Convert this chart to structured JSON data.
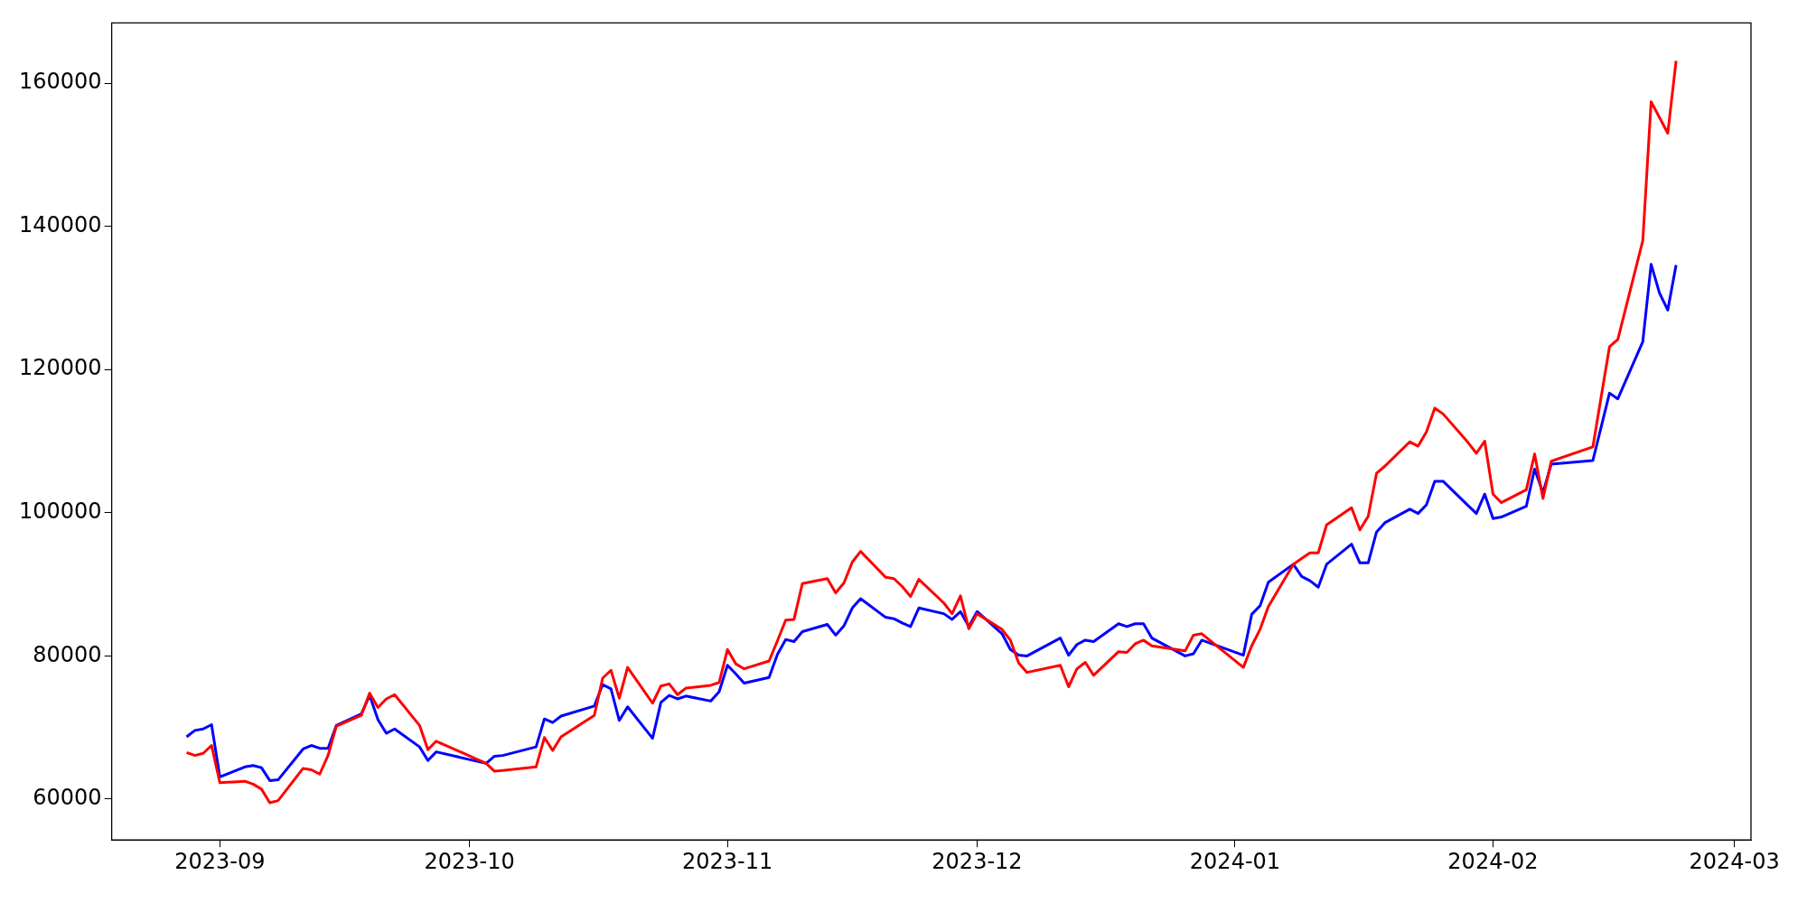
{
  "chart_data": {
    "type": "line",
    "x": [
      "2023-08-28",
      "2023-08-29",
      "2023-08-30",
      "2023-08-31",
      "2023-09-01",
      "2023-09-04",
      "2023-09-05",
      "2023-09-06",
      "2023-09-07",
      "2023-09-08",
      "2023-09-11",
      "2023-09-12",
      "2023-09-13",
      "2023-09-14",
      "2023-09-15",
      "2023-09-18",
      "2023-09-19",
      "2023-09-20",
      "2023-09-21",
      "2023-09-22",
      "2023-09-25",
      "2023-09-26",
      "2023-09-27",
      "2023-10-03",
      "2023-10-04",
      "2023-10-05",
      "2023-10-09",
      "2023-10-10",
      "2023-10-11",
      "2023-10-12",
      "2023-10-16",
      "2023-10-17",
      "2023-10-18",
      "2023-10-19",
      "2023-10-20",
      "2023-10-23",
      "2023-10-24",
      "2023-10-25",
      "2023-10-26",
      "2023-10-27",
      "2023-10-30",
      "2023-10-31",
      "2023-11-01",
      "2023-11-02",
      "2023-11-03",
      "2023-11-06",
      "2023-11-07",
      "2023-11-08",
      "2023-11-09",
      "2023-11-10",
      "2023-11-13",
      "2023-11-14",
      "2023-11-15",
      "2023-11-16",
      "2023-11-17",
      "2023-11-20",
      "2023-11-21",
      "2023-11-22",
      "2023-11-23",
      "2023-11-24",
      "2023-11-27",
      "2023-11-28",
      "2023-11-29",
      "2023-11-30",
      "2023-12-01",
      "2023-12-04",
      "2023-12-05",
      "2023-12-06",
      "2023-12-07",
      "2023-12-11",
      "2023-12-12",
      "2023-12-13",
      "2023-12-14",
      "2023-12-15",
      "2023-12-18",
      "2023-12-19",
      "2023-12-20",
      "2023-12-21",
      "2023-12-22",
      "2023-12-26",
      "2023-12-27",
      "2023-12-28",
      "2024-01-02",
      "2024-01-03",
      "2024-01-04",
      "2024-01-05",
      "2024-01-08",
      "2024-01-09",
      "2024-01-10",
      "2024-01-11",
      "2024-01-12",
      "2024-01-15",
      "2024-01-16",
      "2024-01-17",
      "2024-01-18",
      "2024-01-19",
      "2024-01-22",
      "2024-01-23",
      "2024-01-24",
      "2024-01-25",
      "2024-01-26",
      "2024-01-29",
      "2024-01-30",
      "2024-01-31",
      "2024-02-01",
      "2024-02-02",
      "2024-02-05",
      "2024-02-06",
      "2024-02-07",
      "2024-02-08",
      "2024-02-13",
      "2024-02-15",
      "2024-02-16",
      "2024-02-19",
      "2024-02-20",
      "2024-02-21",
      "2024-02-22",
      "2024-02-23"
    ],
    "series": [
      {
        "color": "#ff0000",
        "values": [
          66500,
          66100,
          66400,
          67500,
          62300,
          62500,
          62100,
          61400,
          59500,
          59800,
          64300,
          64100,
          63500,
          66100,
          70200,
          71700,
          74800,
          72800,
          74000,
          74600,
          70300,
          66900,
          68100,
          65000,
          63900,
          64000,
          64500,
          68600,
          66800,
          68700,
          71700,
          76900,
          78000,
          74100,
          78400,
          73400,
          75800,
          76100,
          74600,
          75500,
          75900,
          76300,
          80900,
          78900,
          78200,
          79300,
          82100,
          85000,
          85100,
          90100,
          90800,
          88800,
          90200,
          93100,
          94600,
          91000,
          90800,
          89700,
          88300,
          90700,
          87400,
          85900,
          88400,
          83800,
          85900,
          83700,
          82200,
          79000,
          77700,
          78700,
          75700,
          78200,
          79100,
          77300,
          80600,
          80500,
          81700,
          82200,
          81400,
          80700,
          82900,
          83100,
          78400,
          81400,
          83700,
          86900,
          92800,
          93600,
          94400,
          94400,
          98300,
          100700,
          97600,
          99500,
          105500,
          106500,
          109900,
          109300,
          111300,
          114600,
          113800,
          109800,
          108300,
          110000,
          102600,
          101400,
          103200,
          108200,
          102000,
          107200,
          109200,
          123200,
          124200,
          138000,
          157400,
          155200,
          153000,
          163100
        ]
      },
      {
        "color": "#0000ff",
        "values": [
          68700,
          69600,
          69800,
          70400,
          63100,
          64500,
          64700,
          64400,
          62600,
          62700,
          67000,
          67500,
          67100,
          67100,
          70300,
          71900,
          74500,
          71100,
          69200,
          69800,
          67300,
          65400,
          66600,
          65000,
          66000,
          66100,
          67300,
          71200,
          70700,
          71600,
          73000,
          76000,
          75400,
          71000,
          72900,
          68500,
          73500,
          74500,
          74000,
          74400,
          73700,
          75000,
          78700,
          77500,
          76200,
          77000,
          80200,
          82300,
          82000,
          83400,
          84400,
          82900,
          84200,
          86700,
          88000,
          85400,
          85200,
          84600,
          84100,
          86700,
          85900,
          85100,
          86200,
          84100,
          86200,
          83100,
          80900,
          80100,
          80000,
          82500,
          80100,
          81600,
          82200,
          82000,
          84500,
          84100,
          84500,
          84500,
          82500,
          80000,
          80300,
          82200,
          80100,
          85800,
          87000,
          90300,
          92800,
          91100,
          90500,
          89600,
          92800,
          95600,
          93000,
          93000,
          97300,
          98600,
          100500,
          99900,
          101100,
          104400,
          104400,
          101000,
          99900,
          102600,
          99200,
          99400,
          100900,
          106100,
          102800,
          106800,
          107300,
          116700,
          115900,
          123900,
          134700,
          130700,
          128300,
          134600
        ]
      }
    ],
    "xlim": [
      "2023-08-19",
      "2024-03-03"
    ],
    "xticks": [
      "2023-09",
      "2023-10",
      "2023-11",
      "2023-12",
      "2024-01",
      "2024-02",
      "2024-03"
    ],
    "ylim": [
      54300,
      168400
    ],
    "yticks": [
      60000,
      80000,
      100000,
      120000,
      140000,
      160000
    ],
    "grid": false,
    "legend": false
  }
}
